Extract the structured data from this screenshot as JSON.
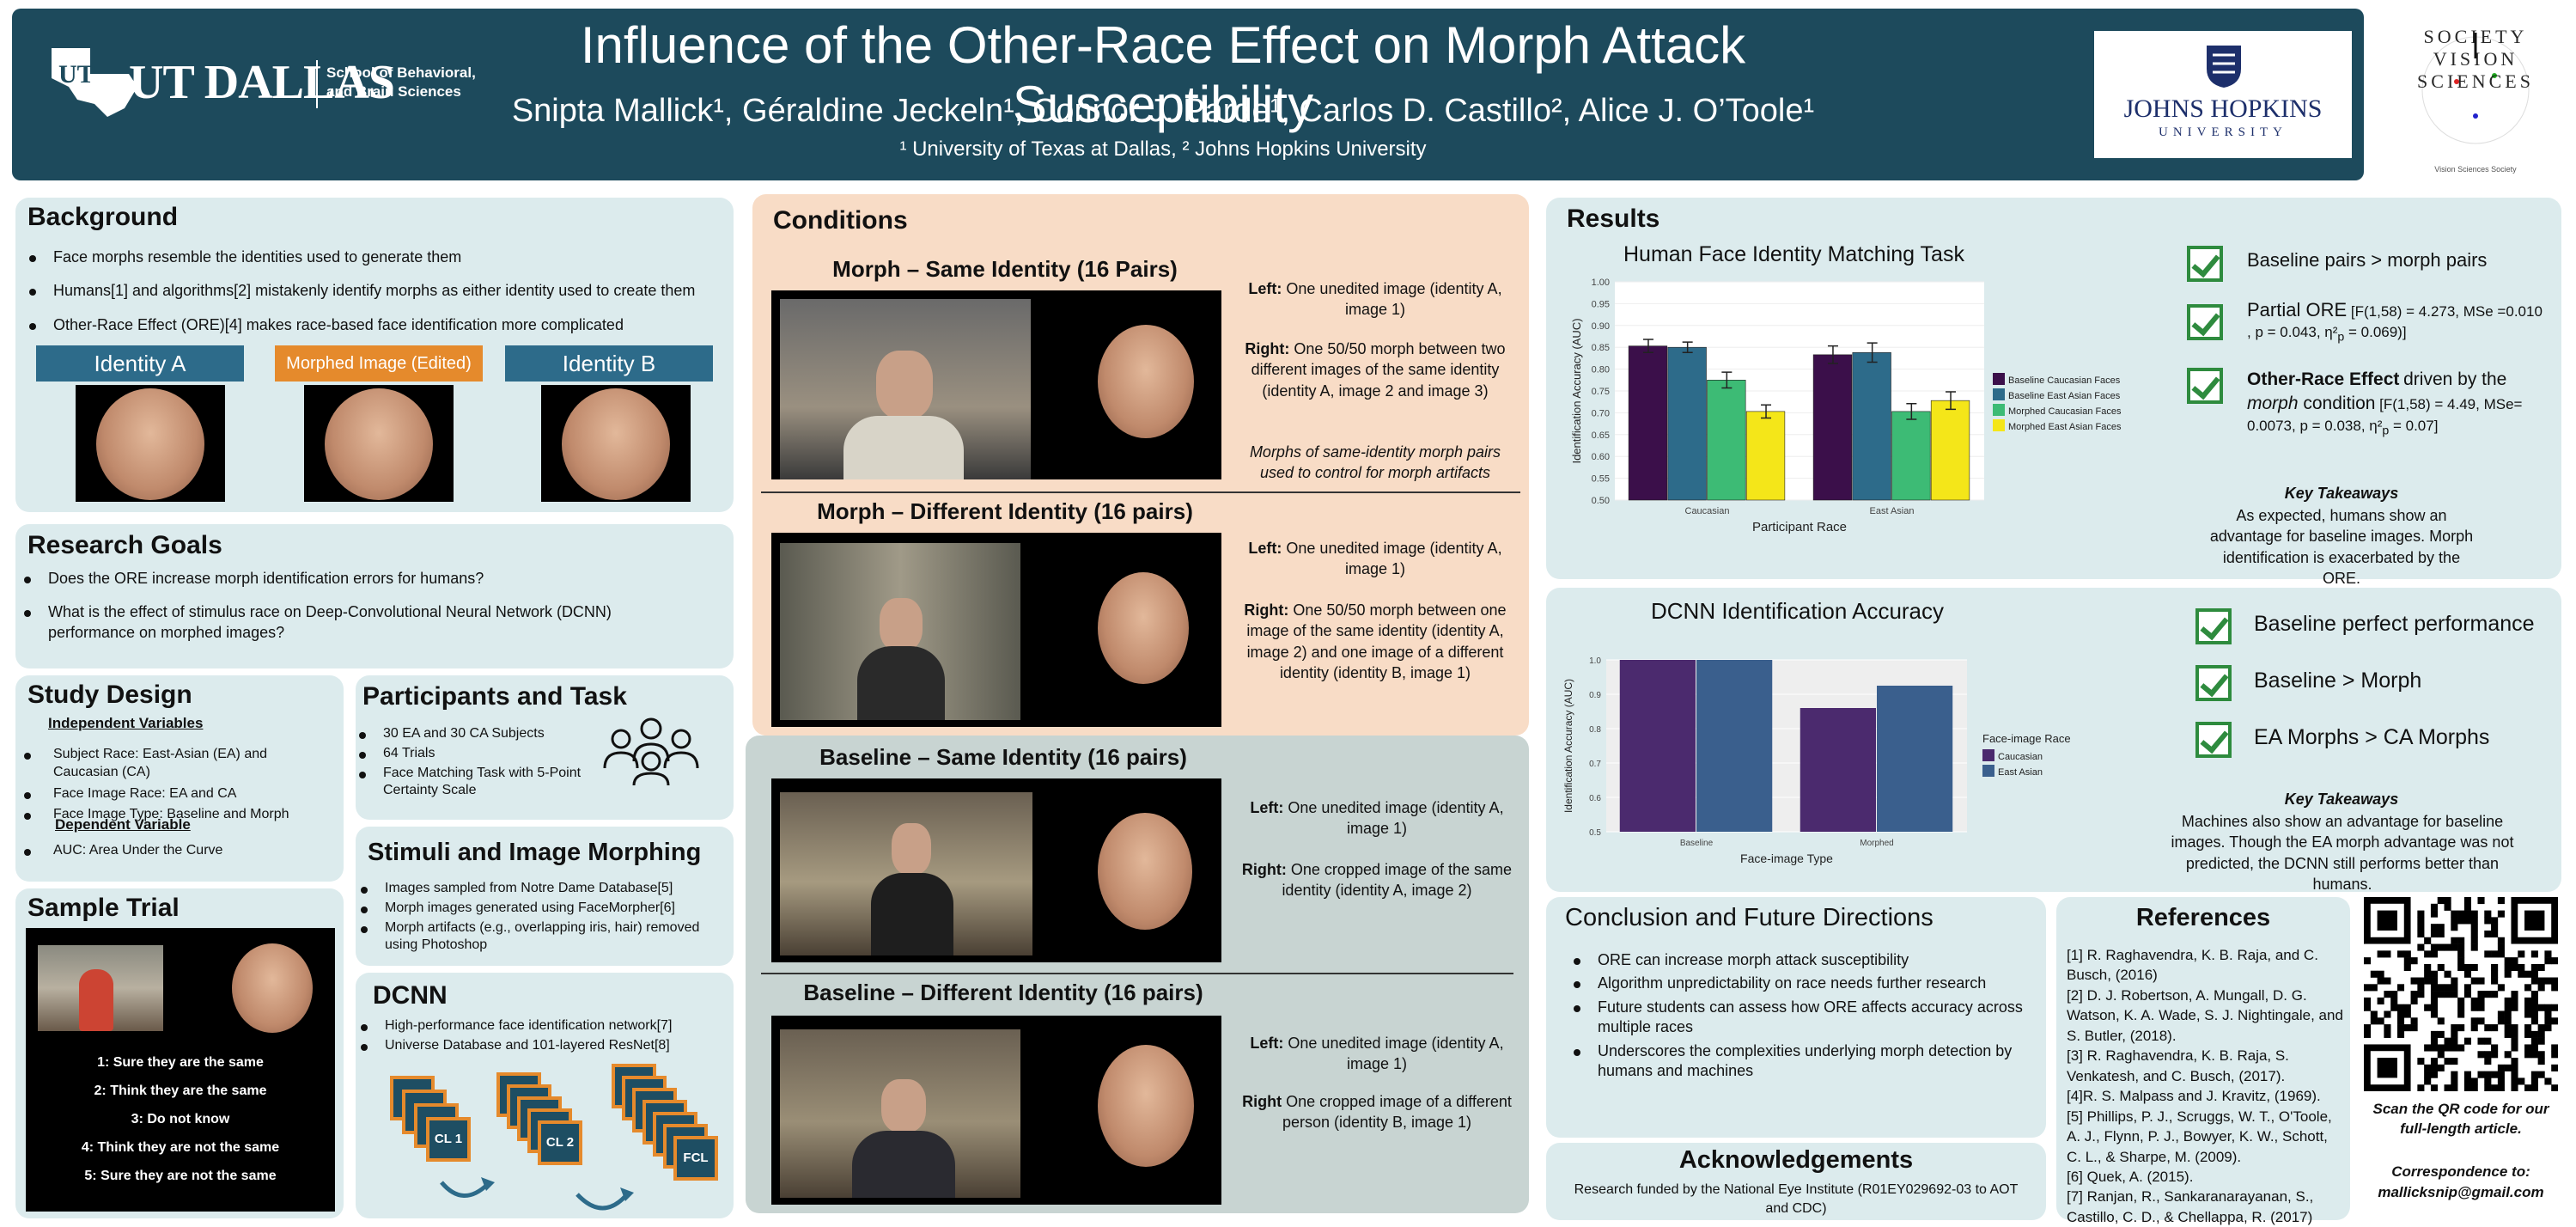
{
  "header": {
    "title": "Influence of the Other-Race Effect on Morph Attack Susceptibility",
    "authors": "Snipta Mallick¹, Géraldine Jeckeln¹, Connor J. Parde¹, Carlos D. Castillo², Alice J. O’Toole¹",
    "affiliations": "¹ University of Texas at Dallas, ² Johns Hopkins University",
    "utd_logo": "UT DALLAS",
    "utd_school": "School of Behavioral, and Brain Sciences",
    "jhu_name": "JOHNS HOPKINS",
    "jhu_sub": "UNIVERSITY",
    "vss_text": "SOCIETY VISION SCIENCES",
    "vss_small": "Vision Sciences Society"
  },
  "background": {
    "title": "Background",
    "items": [
      "Face morphs resemble the identities used to generate them",
      "Humans[1] and algorithms[2] mistakenly identify morphs as either identity used to create them",
      "Other-Race Effect (ORE)[4] makes race-based face identification more complicated"
    ],
    "label_a": "Identity A",
    "label_m": "Morphed Image (Edited)",
    "label_b": "Identity B"
  },
  "goals": {
    "title": "Research Goals",
    "items": [
      "Does the ORE increase morph identification errors for humans?",
      "What is the effect of stimulus race on Deep-Convolutional Neural Network (DCNN) performance on morphed images?"
    ]
  },
  "design": {
    "title": "Study Design",
    "iv_label": "Independent Variables",
    "iv_items": [
      "Subject Race: East-Asian (EA) and Caucasian (CA)",
      "Face Image Race: EA and CA",
      "Face Image Type: Baseline and Morph"
    ],
    "dv_label": "Dependent Variable",
    "dv_items": [
      "AUC: Area Under the Curve"
    ]
  },
  "participants": {
    "title": "Participants and Task",
    "items": [
      "30 EA and 30 CA Subjects",
      "64 Trials",
      "Face Matching Task with 5-Point Certainty Scale"
    ]
  },
  "stimuli": {
    "title": "Stimuli and Image Morphing",
    "items": [
      "Images sampled from Notre Dame Database[5]",
      "Morph images generated using FaceMorpher[6]",
      "Morph artifacts (e.g., overlapping iris, hair) removed using Photoshop"
    ]
  },
  "dcnn": {
    "title": "DCNN",
    "items": [
      "High-performance face identification network[7]",
      "Universe Database and 101-layered ResNet[8]"
    ],
    "cl1": "CL 1",
    "cl2": "CL 2",
    "fcl": "FCL"
  },
  "sample": {
    "title": "Sample Trial",
    "options": [
      "1: Sure they are the same",
      "2: Think they are the same",
      "3: Do not know",
      "4: Think they are not the same",
      "5: Sure they are not the same"
    ]
  },
  "conditions": {
    "title": "Conditions",
    "c1": {
      "title": "Morph – Same Identity (16 Pairs)",
      "left_b": "Left:",
      "left": " One unedited image (identity A, image 1)",
      "right_b": "Right:",
      "right": " One 50/50 morph between two different images of the same identity (identity A, image 2 and image 3)",
      "note": "Morphs of same-identity morph pairs used to control for morph artifacts"
    },
    "c2": {
      "title": "Morph – Different Identity (16 pairs)",
      "left_b": "Left:",
      "left": " One unedited image (identity A, image 1)",
      "right_b": "Right:",
      "right": " One 50/50 morph between one image of the same identity (identity A, image 2) and one image of a different identity (identity B, image 1)"
    },
    "c3": {
      "title": "Baseline – Same Identity (16 pairs)",
      "left_b": "Left:",
      "left": " One unedited image (identity A, image 1)",
      "right_b": "Right:",
      "right": " One cropped image of the same identity (identity A, image 2)"
    },
    "c4": {
      "title": "Baseline – Different Identity (16 pairs)",
      "left_b": "Left:",
      "left": " One unedited image (identity A, image 1)",
      "right_b": "Right",
      "right": " One cropped image of a different person (identity B, image 1)"
    }
  },
  "results": {
    "title": "Results",
    "chart1_title": "Human Face Identity Matching Task",
    "checks": [
      "Baseline pairs > morph pairs",
      "Partial ORE [F(1,58) = 4.273, MSe =0.010 , p = 0.043, η²p = 0.069)]",
      "Other-Race Effect driven by the morph condition [F(1,58) = 4.49, MSe= 0.0073, p = 0.038, η²p = 0.07]"
    ],
    "kt_title": "Key Takeaways",
    "kt_text": "As expected, humans show an advantage for baseline images. Morph identification is exacerbated by the ORE."
  },
  "dcnn_results": {
    "title": "DCNN Identification Accuracy",
    "checks": [
      "Baseline perfect performance",
      "Baseline > Morph",
      "EA Morphs > CA Morphs"
    ],
    "kt_title": "Key Takeaways",
    "kt_text": "Machines also show an advantage for baseline images. Though the EA morph advantage was not predicted, the DCNN still performs better than humans."
  },
  "conclusion": {
    "title": "Conclusion and Future Directions",
    "items": [
      "ORE can increase morph attack susceptibility",
      "Algorithm unpredictability on race needs further research",
      "Future students can assess how ORE affects accuracy across multiple races",
      "Underscores the complexities underlying morph detection by humans and machines"
    ]
  },
  "ack": {
    "title": "Acknowledgements",
    "text": "Research funded by the National Eye Institute (R01EY029692-03 to AOT and CDC)"
  },
  "refs": {
    "title": "References",
    "items": [
      "[1] R. Raghavendra, K. B. Raja, and C. Busch, (2016)",
      "[2] D. J. Robertson, A. Mungall, D. G. Watson, K. A. Wade, S. J. Nightingale, and S. Butler, (2018).",
      "[3] R. Raghavendra, K. B. Raja, S. Venkatesh, and C. Busch, (2017).",
      "[4]R. S. Malpass and J. Kravitz, (1969).",
      "[5] Phillips, P. J., Scruggs, W. T., O'Toole, A. J., Flynn, P. J., Bowyer, K. W., Schott, C. L., & Sharpe, M. (2009).",
      "[6] Quek, A. (2015).",
      "[7] Ranjan, R., Sankaranarayanan, S., Castillo, C. D., & Chellappa, R. (2017)"
    ]
  },
  "qr": {
    "caption": "Scan the QR code for our full-length article.",
    "corr": "Correspondence to:",
    "email": "mallicksnip@gmail.com"
  },
  "chart_data": [
    {
      "type": "bar",
      "title": "Human Face Identity Matching Task",
      "xlabel": "Participant Race",
      "ylabel": "Identification Accuracy (AUC)",
      "categories": [
        "Caucasian",
        "East Asian"
      ],
      "ylim": [
        0.5,
        1.0
      ],
      "yticks": [
        "0.50",
        "0.55",
        "0.60",
        "0.65",
        "0.70",
        "0.75",
        "0.80",
        "0.85",
        "0.90",
        "0.95",
        "1.00"
      ],
      "legend_position": "right",
      "series": [
        {
          "name": "Baseline Caucasian Faces",
          "color": "#3b0f4a",
          "values": [
            0.853,
            0.833
          ]
        },
        {
          "name": "Baseline East Asian Faces",
          "color": "#2d6b8a",
          "values": [
            0.85,
            0.838
          ]
        },
        {
          "name": "Morphed Caucasian Faces",
          "color": "#3dbb75",
          "values": [
            0.775,
            0.703
          ]
        },
        {
          "name": "Morphed East Asian Faces",
          "color": "#f4e619",
          "values": [
            0.703,
            0.728
          ]
        }
      ],
      "errors": [
        [
          0.015,
          0.02
        ],
        [
          0.012,
          0.022
        ],
        [
          0.018,
          0.018
        ],
        [
          0.015,
          0.02
        ]
      ]
    },
    {
      "type": "bar",
      "title": "DCNN Identification Accuracy",
      "xlabel": "Face-image Type",
      "ylabel": "Identification Accuracy (AUC)",
      "categories": [
        "Baseline",
        "Morphed"
      ],
      "ylim": [
        0.5,
        1.0
      ],
      "yticks": [
        "0.5",
        "0.6",
        "0.7",
        "0.8",
        "0.9",
        "1.0"
      ],
      "legend_title": "Face-image Race",
      "legend_position": "right",
      "series": [
        {
          "name": "Caucasian",
          "color": "#4b2a6e",
          "values": [
            1.0,
            0.86
          ]
        },
        {
          "name": "East Asian",
          "color": "#3a5f8d",
          "values": [
            1.0,
            0.925
          ]
        }
      ]
    }
  ]
}
